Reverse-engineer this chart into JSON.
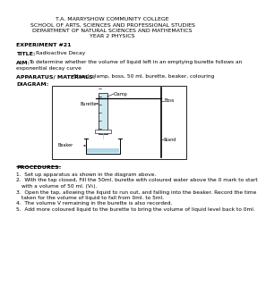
{
  "header_line1": "T.A. MARRYSHOW COMMUNITY COLLEGE",
  "header_line2": "SCHOOL OF ARTS, SCIENCES AND PROFESSIONAL STUDIES",
  "header_line3": "DEPARTMENT OF NATURAL SCIENCES AND MATHEMATICS",
  "header_line4": "YEAR 2 PHYSICS",
  "experiment": "EXPERIMENT #21",
  "title_label": "TITLE:",
  "title_text": "Radioactive Decay",
  "aim_label": "AIM:",
  "aim_text_1": "To determine whether the volume of liquid left in an emptying burette follows an",
  "aim_text_2": "exponential decay curve",
  "apparatus_label": "APPARATUS/ MATERIALS:",
  "apparatus_text": "Stand, clamp, boss, 50 ml. burette, beaker, colouring",
  "diagram_label": "DIAGRAM:",
  "procedures_label": "PROCEDURES:",
  "procedure_items": [
    "Set up apparatus as shown in the diagram above.",
    "With the tap closed, Fill the 50ml. burette with coloured water above the 0 mark to start",
    "with a volume of 50 ml. (V₀).",
    "Open the tap, allowing the liquid to run out, and falling into the beaker. Record the time",
    "taken for the volume of liquid to fall from 0ml. to 5ml.",
    "The volume V remaining in the burette is also recorded.",
    "Add more coloured liquid to the burette to bring the volume of liquid level back to 0ml."
  ],
  "bg_color": "#ffffff",
  "text_color": "#000000",
  "font_size_header": 4.5,
  "font_size_body": 4.2,
  "font_size_label": 4.5,
  "clamp_label": "Clamp",
  "boss_label": "Boss",
  "burette_label": "Burette",
  "stand_label": "Stand",
  "beaker_label": "Beaker"
}
